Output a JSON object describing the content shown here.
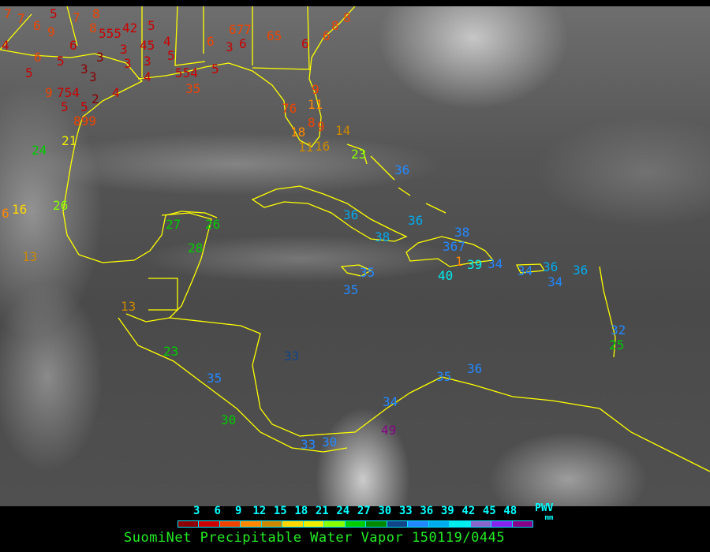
{
  "title": "SuomiNet Precipitable Water Vapor 150119/0445",
  "legend": {
    "label": "PWV",
    "units": "mm",
    "ticks": [
      "3",
      "6",
      "9",
      "12",
      "15",
      "18",
      "21",
      "24",
      "27",
      "30",
      "33",
      "36",
      "39",
      "42",
      "45",
      "48"
    ],
    "colors": [
      "#8b0000",
      "#cc0000",
      "#ee4400",
      "#ff8800",
      "#cc8800",
      "#ffd700",
      "#eeee00",
      "#88ff00",
      "#00cc00",
      "#008800",
      "#114488",
      "#2288ff",
      "#00aaee",
      "#00eeee",
      "#8866cc",
      "#8822ee",
      "#880088"
    ]
  },
  "coastline_color": "#ffff00",
  "stations": [
    {
      "v": "7",
      "c": "#ee4400"
    },
    {
      "v": "7",
      "c": "#ee4400"
    },
    {
      "v": "6",
      "c": "#ee4400"
    },
    {
      "v": "9",
      "c": "#ee4400"
    },
    {
      "v": "5",
      "c": "#cc0000"
    },
    {
      "v": "6",
      "c": "#cc0000"
    },
    {
      "v": "7",
      "c": "#ee4400"
    },
    {
      "v": "8",
      "c": "#ee4400"
    },
    {
      "v": "8",
      "c": "#ee4400"
    },
    {
      "v": "555",
      "c": "#cc0000"
    },
    {
      "v": "42",
      "c": "#cc0000"
    },
    {
      "v": "5",
      "c": "#cc0000"
    },
    {
      "v": "4",
      "c": "#cc0000"
    },
    {
      "v": "6",
      "c": "#ee4400"
    },
    {
      "v": "5",
      "c": "#cc0000"
    },
    {
      "v": "3",
      "c": "#8b0000"
    },
    {
      "v": "3",
      "c": "#cc0000"
    },
    {
      "v": "3",
      "c": "#cc0000"
    },
    {
      "v": "45",
      "c": "#cc0000"
    },
    {
      "v": "3",
      "c": "#cc0000"
    },
    {
      "v": "4",
      "c": "#cc0000"
    },
    {
      "v": "5",
      "c": "#cc0000"
    },
    {
      "v": "5",
      "c": "#cc0000"
    },
    {
      "v": "3",
      "c": "#8b0000"
    },
    {
      "v": "3",
      "c": "#8b0000"
    },
    {
      "v": "4",
      "c": "#cc0000"
    },
    {
      "v": "554",
      "c": "#cc0000"
    },
    {
      "v": "35",
      "c": "#ee4400"
    },
    {
      "v": "5",
      "c": "#cc0000"
    },
    {
      "v": "6",
      "c": "#ee4400"
    },
    {
      "v": "3",
      "c": "#cc0000"
    },
    {
      "v": "677",
      "c": "#ee4400"
    },
    {
      "v": "6",
      "c": "#cc0000"
    },
    {
      "v": "65",
      "c": "#ee4400"
    },
    {
      "v": "6",
      "c": "#cc0000"
    },
    {
      "v": "8",
      "c": "#ee4400"
    },
    {
      "v": "8",
      "c": "#ee4400"
    },
    {
      "v": "6",
      "c": "#ee4400"
    },
    {
      "v": "9",
      "c": "#ee4400"
    },
    {
      "v": "754",
      "c": "#cc0000"
    },
    {
      "v": "5",
      "c": "#cc0000"
    },
    {
      "v": "5",
      "c": "#cc0000"
    },
    {
      "v": "2",
      "c": "#8b0000"
    },
    {
      "v": "4",
      "c": "#cc0000"
    },
    {
      "v": "899",
      "c": "#ee4400"
    },
    {
      "v": "21",
      "c": "#eeee00"
    },
    {
      "v": "24",
      "c": "#00cc00"
    },
    {
      "v": "76",
      "c": "#ee4400"
    },
    {
      "v": "11",
      "c": "#ff8800"
    },
    {
      "v": "9",
      "c": "#ee4400"
    },
    {
      "v": "8",
      "c": "#ee4400"
    },
    {
      "v": "9",
      "c": "#ee4400"
    },
    {
      "v": "18",
      "c": "#ff8800"
    },
    {
      "v": "11",
      "c": "#cc8800"
    },
    {
      "v": "16",
      "c": "#cc8800"
    },
    {
      "v": "14",
      "c": "#cc8800"
    },
    {
      "v": "6",
      "c": "#ff8800"
    },
    {
      "v": "16",
      "c": "#ffd700"
    },
    {
      "v": "26",
      "c": "#88ff00"
    },
    {
      "v": "13",
      "c": "#cc8800"
    },
    {
      "v": "23",
      "c": "#88ff00"
    },
    {
      "v": "36",
      "c": "#2288ff"
    },
    {
      "v": "27",
      "c": "#00cc00"
    },
    {
      "v": "26",
      "c": "#00cc00"
    },
    {
      "v": "28",
      "c": "#00cc00"
    },
    {
      "v": "36",
      "c": "#00aaee"
    },
    {
      "v": "36",
      "c": "#00aaee"
    },
    {
      "v": "38",
      "c": "#00aaee"
    },
    {
      "v": "367",
      "c": "#2288ff"
    },
    {
      "v": "38",
      "c": "#2288ff"
    },
    {
      "v": "39",
      "c": "#00eeee"
    },
    {
      "v": "34",
      "c": "#2288ff"
    },
    {
      "v": "40",
      "c": "#00eeee"
    },
    {
      "v": "1",
      "c": "#ff8800"
    },
    {
      "v": "35",
      "c": "#2288ff"
    },
    {
      "v": "35",
      "c": "#2288ff"
    },
    {
      "v": "34",
      "c": "#2288ff"
    },
    {
      "v": "36",
      "c": "#00aaee"
    },
    {
      "v": "34",
      "c": "#2288ff"
    },
    {
      "v": "36",
      "c": "#00aaee"
    },
    {
      "v": "13",
      "c": "#cc8800"
    },
    {
      "v": "23",
      "c": "#00cc00"
    },
    {
      "v": "35",
      "c": "#2288ff"
    },
    {
      "v": "33",
      "c": "#114488"
    },
    {
      "v": "35",
      "c": "#2288ff"
    },
    {
      "v": "36",
      "c": "#2288ff"
    },
    {
      "v": "34",
      "c": "#2288ff"
    },
    {
      "v": "49",
      "c": "#880088"
    },
    {
      "v": "30",
      "c": "#00cc00"
    },
    {
      "v": "33",
      "c": "#2288ff"
    },
    {
      "v": "30",
      "c": "#2288ff"
    },
    {
      "v": "25",
      "c": "#00cc00"
    },
    {
      "v": "32",
      "c": "#2288ff"
    }
  ]
}
